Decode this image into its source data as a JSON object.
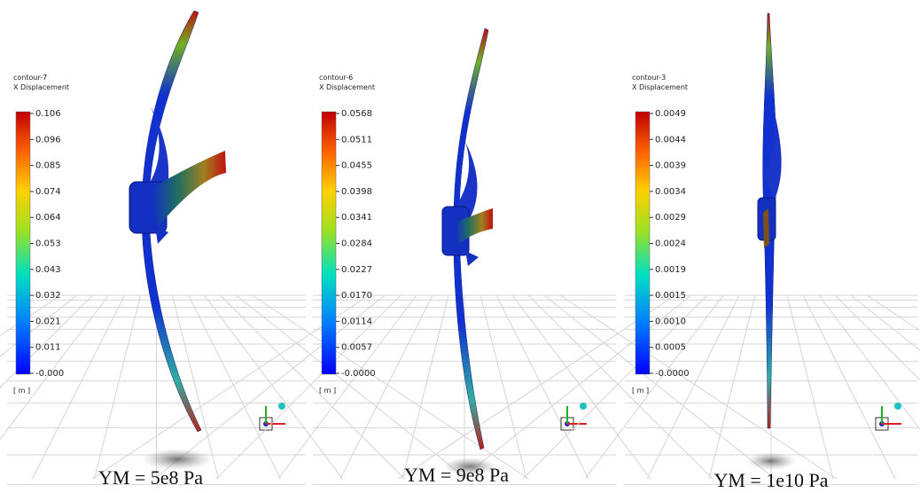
{
  "panels": [
    {
      "contour": "contour-7",
      "quantity": "X Displacement",
      "ticks": [
        "0.106",
        "0.096",
        "0.085",
        "0.074",
        "0.064",
        "0.053",
        "0.043",
        "0.032",
        "0.021",
        "0.011",
        "-0.000"
      ],
      "unit": "[ m ]",
      "caption": "YM = 5e8 Pa"
    },
    {
      "contour": "contour-6",
      "quantity": "X Displacement",
      "ticks": [
        "0.0568",
        "0.0511",
        "0.0455",
        "0.0398",
        "0.0341",
        "0.0284",
        "0.0227",
        "0.0170",
        "0.0114",
        "0.0057",
        "-0.0000"
      ],
      "unit": "[ m ]",
      "caption": "YM = 9e8 Pa"
    },
    {
      "contour": "contour-3",
      "quantity": "X Displacement",
      "ticks": [
        "0.0049",
        "0.0044",
        "0.0039",
        "0.0034",
        "0.0029",
        "0.0024",
        "0.0019",
        "0.0015",
        "0.0010",
        "0.0005",
        "-0.0000"
      ],
      "unit": "[ m ]",
      "caption": "YM = 1e10 Pa"
    }
  ]
}
